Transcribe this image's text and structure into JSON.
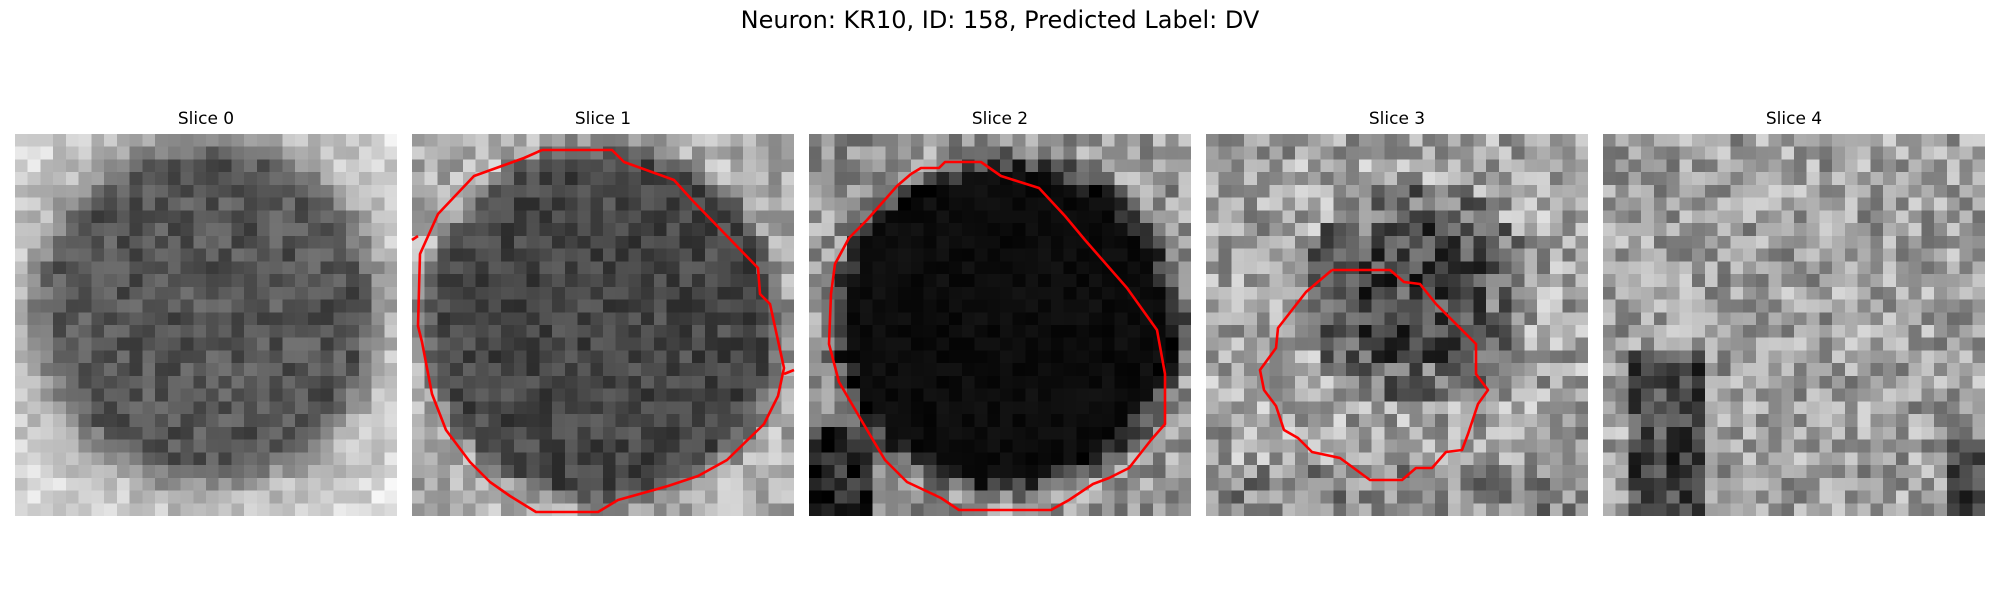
{
  "figure": {
    "title": "Neuron: KR10, ID: 158, Predicted Label: DV"
  },
  "panels": [
    {
      "title": "Slice 0",
      "has_contour": false
    },
    {
      "title": "Slice 1",
      "has_contour": true
    },
    {
      "title": "Slice 2",
      "has_contour": true
    },
    {
      "title": "Slice 3",
      "has_contour": true
    },
    {
      "title": "Slice 4",
      "has_contour": false
    }
  ],
  "colors": {
    "contour": "#ff0000",
    "background": "#ffffff"
  }
}
